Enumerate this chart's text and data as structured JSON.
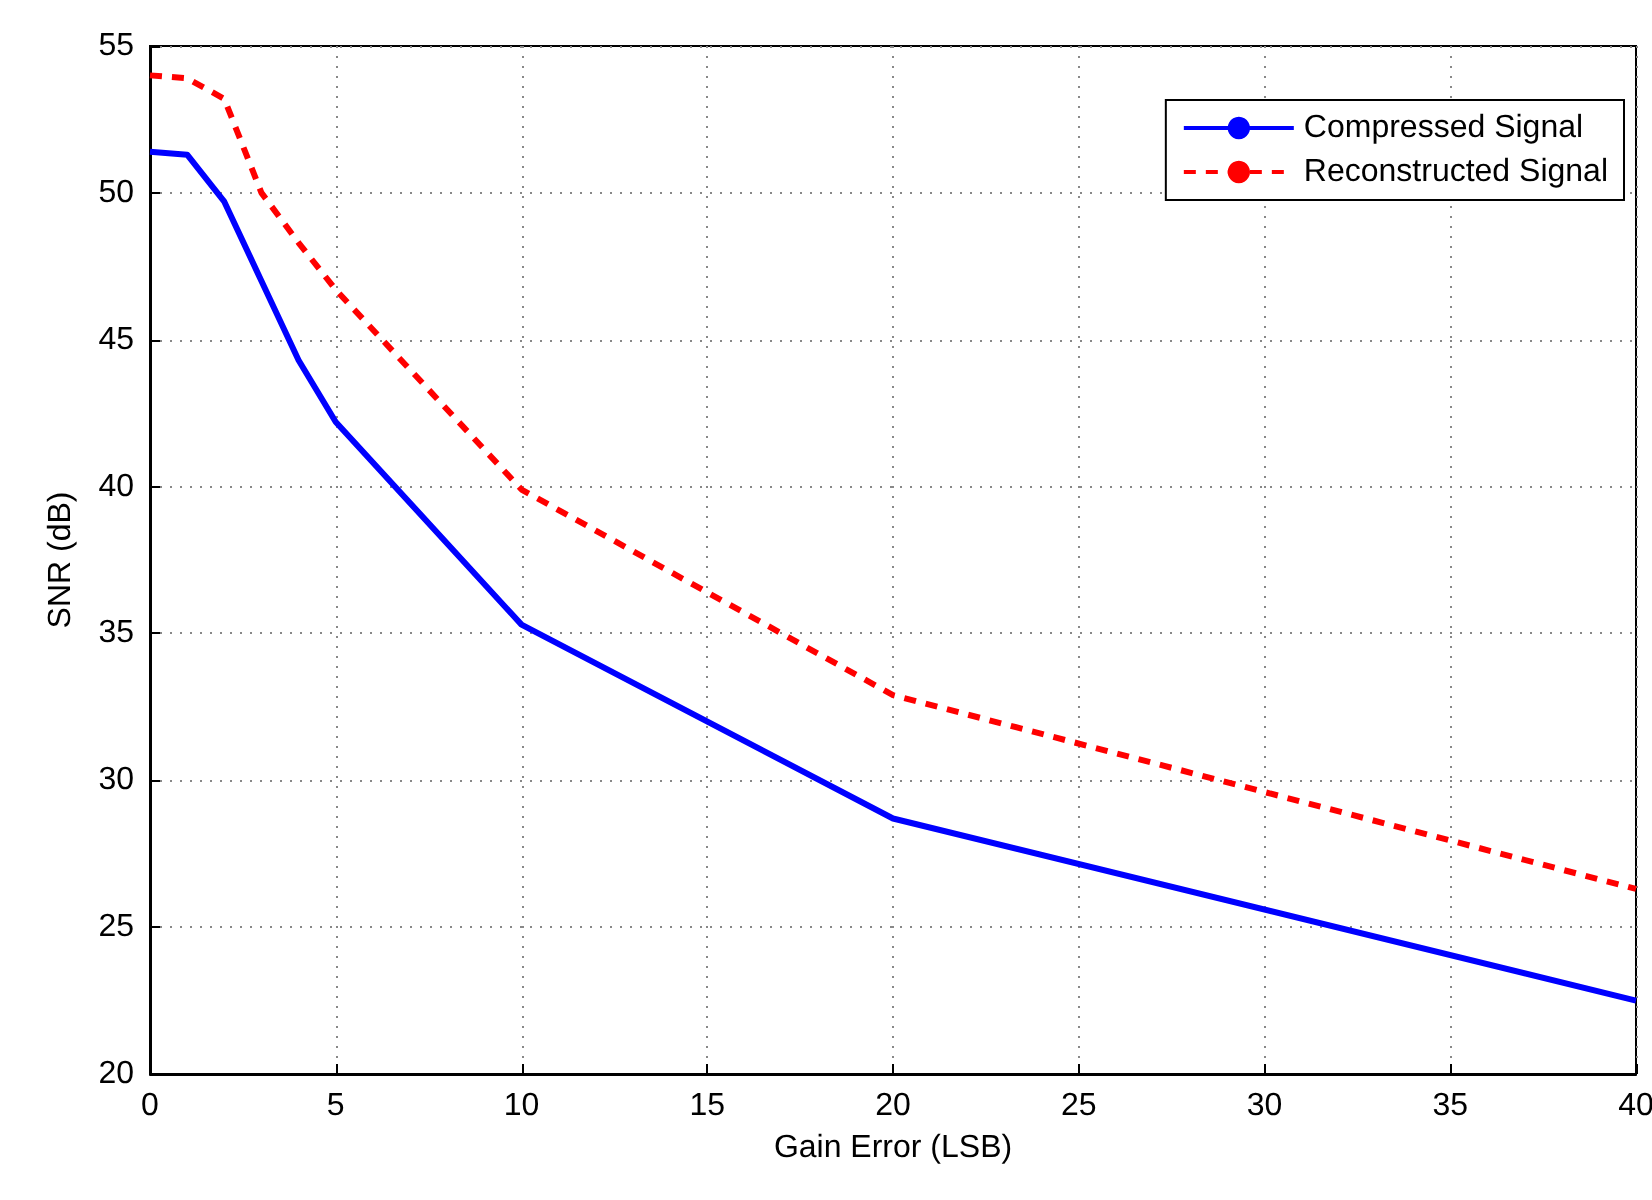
{
  "chart_data": {
    "type": "line",
    "xlabel": "Gain Error (LSB)",
    "ylabel": "SNR (dB)",
    "xlim": [
      0,
      40
    ],
    "xticks": [
      0,
      5,
      10,
      15,
      20,
      25,
      30,
      35,
      40
    ],
    "ylim": [
      20,
      55
    ],
    "yticks": [
      20,
      25,
      30,
      35,
      40,
      45,
      50,
      55
    ],
    "grid": true,
    "legend": "top right",
    "marker": "none",
    "series": [
      {
        "name": "Compressed Signal",
        "color": "#0000ff",
        "line_style": "solid",
        "x": [
          0,
          1,
          2,
          3,
          4,
          5,
          10,
          20,
          40
        ],
        "values": [
          51.4,
          51.3,
          49.7,
          47.0,
          44.3,
          42.2,
          35.3,
          28.7,
          22.5
        ]
      },
      {
        "name": "Reconstructed Signal",
        "color": "#ff0000",
        "line_style": "dashed",
        "x": [
          0,
          1,
          2,
          3,
          4,
          5,
          10,
          20,
          40
        ],
        "values": [
          54.0,
          53.9,
          53.2,
          50.0,
          48.3,
          46.7,
          39.9,
          32.9,
          26.3
        ]
      }
    ]
  }
}
